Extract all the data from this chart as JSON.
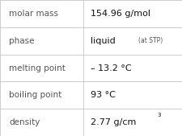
{
  "rows": [
    {
      "label": "molar mass",
      "value": "154.96 g/mol",
      "value_extra": null,
      "superscript": false
    },
    {
      "label": "phase",
      "value": "liquid",
      "value_extra": "(at STP)",
      "superscript": false
    },
    {
      "label": "melting point",
      "value": "– 13.2 °C",
      "value_extra": null,
      "superscript": false
    },
    {
      "label": "boiling point",
      "value": "93 °C",
      "value_extra": null,
      "superscript": false
    },
    {
      "label": "density",
      "value": "2.77 g/cm",
      "value_extra": "3",
      "superscript": true
    }
  ],
  "background_color": "#ffffff",
  "border_color": "#cccccc",
  "label_fontsize": 7.5,
  "value_fontsize": 8.0,
  "extra_fontsize": 5.5,
  "super_fontsize": 5.0,
  "label_color": "#555555",
  "value_color": "#111111",
  "col_split": 0.455
}
